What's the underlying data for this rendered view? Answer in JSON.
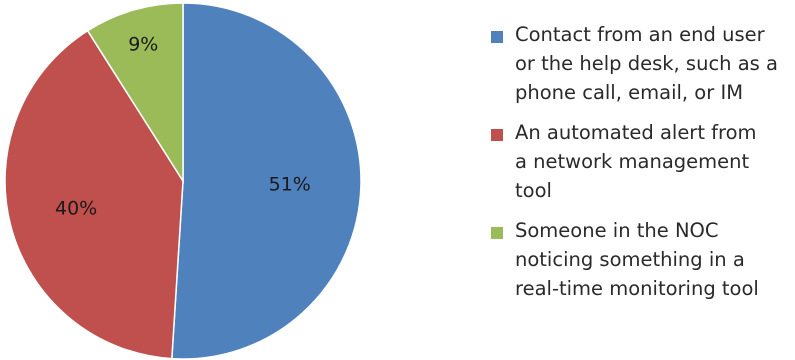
{
  "chart_data": {
    "type": "pie",
    "title": "",
    "slices": [
      {
        "label": "Contact from an end user or the help desk, such as a phone call, email, or IM",
        "value": 51,
        "display": "51%",
        "color": "#4f81bd"
      },
      {
        "label": "An automated alert from a network management tool",
        "value": 40,
        "display": "40%",
        "color": "#c0504d"
      },
      {
        "label": "Someone in the NOC noticing something in a real-time monitoring tool",
        "value": 9,
        "display": "9%",
        "color": "#9bbb59"
      }
    ],
    "legend_position": "right",
    "legend": [
      {
        "lines": [
          "Contact from an end user",
          "or the help desk, such as a",
          "phone call, email, or IM"
        ]
      },
      {
        "lines": [
          "An automated alert from",
          "a network management",
          "tool"
        ]
      },
      {
        "lines": [
          "Someone in the NOC",
          "noticing something in a",
          "real-time monitoring tool"
        ]
      }
    ]
  }
}
